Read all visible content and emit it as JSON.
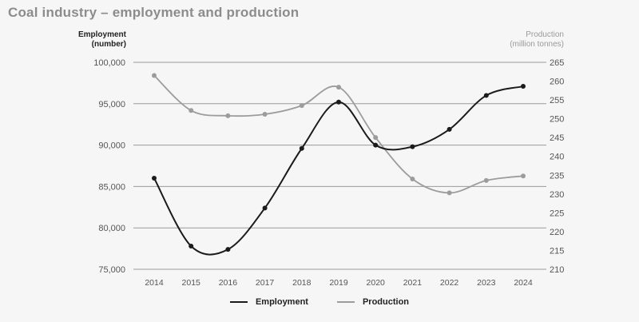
{
  "title": "Coal industry – employment and production",
  "colors": {
    "employment": "#1b1b1b",
    "production": "#9c9c9c",
    "grid": "#9a9a9a",
    "background": "#f6f6f6"
  },
  "chart_data": {
    "type": "line",
    "x": [
      "2014",
      "2015",
      "2016",
      "2017",
      "2018",
      "2019",
      "2020",
      "2021",
      "2022",
      "2023",
      "2024"
    ],
    "left_axis": {
      "label_line1": "Employment",
      "label_line2": "(number)",
      "ylim": [
        75000,
        100000
      ],
      "ticks": [
        75000,
        80000,
        85000,
        90000,
        95000,
        100000
      ],
      "tick_labels": [
        "75,000",
        "80,000",
        "85,000",
        "90,000",
        "95,000",
        "100,000"
      ]
    },
    "right_axis": {
      "label_line1": "Production",
      "label_line2": "(million tonnes)",
      "ylim": [
        210,
        265
      ],
      "ticks": [
        210,
        215,
        220,
        225,
        230,
        235,
        240,
        245,
        250,
        255,
        260,
        265
      ],
      "tick_labels": [
        "210",
        "215",
        "220",
        "225",
        "230",
        "235",
        "240",
        "245",
        "250",
        "255",
        "260",
        "265"
      ]
    },
    "series": [
      {
        "name": "Employment",
        "axis": "left",
        "values": [
          86000,
          77800,
          77400,
          82400,
          89600,
          95200,
          90000,
          89800,
          91900,
          96000,
          97100
        ]
      },
      {
        "name": "Production",
        "axis": "right",
        "values": [
          261.5,
          252.2,
          250.8,
          251.2,
          253.5,
          258.4,
          245.0,
          234.0,
          230.3,
          233.6,
          234.8
        ]
      }
    ],
    "grid": true,
    "legend_position": "bottom-center"
  }
}
